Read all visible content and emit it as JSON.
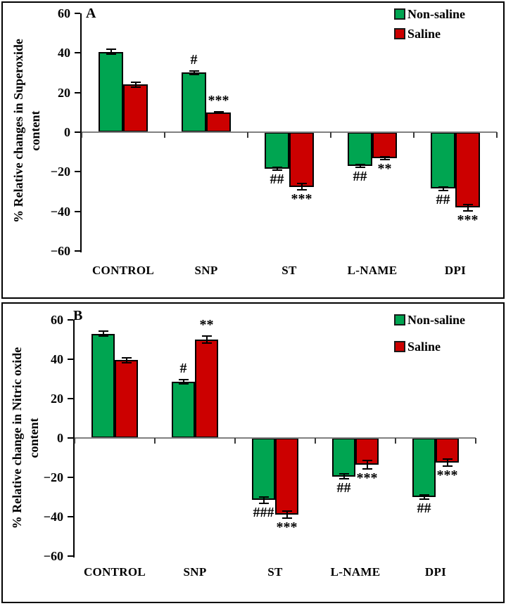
{
  "styles": {
    "non_saline_color": "#00A551",
    "saline_color": "#CC0000",
    "bar_border_color": "#000000",
    "zero_line_color": "#808080",
    "axis_color": "#000000"
  },
  "chart_data": [
    {
      "type": "bar",
      "panel_label": "A",
      "ylabel": "% Relative changes in Superoxide content",
      "ylabel_lines": [
        "% Relative changes in Superoxide",
        "content"
      ],
      "categories": [
        "CONTROL",
        "SNP",
        "ST",
        "L-NAME",
        "DPI"
      ],
      "ylim": [
        -60,
        60
      ],
      "yticks": [
        60,
        40,
        20,
        0,
        -20,
        -40,
        -60
      ],
      "grid": false,
      "legend_position": "top-right",
      "series": [
        {
          "name": "Non-saline",
          "color": "#00A551",
          "values": [
            40.5,
            30,
            -18.5,
            -17,
            -28.5
          ],
          "errors": [
            1.2,
            0.9,
            0.6,
            0.6,
            0.9
          ],
          "annotations": [
            "",
            "#",
            "##",
            "##",
            "##"
          ]
        },
        {
          "name": "Saline",
          "color": "#CC0000",
          "values": [
            24,
            10,
            -27.5,
            -13,
            -38
          ],
          "errors": [
            1.3,
            0.4,
            1.5,
            0.7,
            1.6
          ],
          "annotations": [
            "",
            "***",
            "***",
            "**",
            "***"
          ]
        }
      ]
    },
    {
      "type": "bar",
      "panel_label": "B",
      "ylabel": "% Relative change in Nitric oxide content",
      "ylabel_lines": [
        "% Relative change in Nitric oxide",
        "content"
      ],
      "categories": [
        "CONTROL",
        "SNP",
        "ST",
        "L-NAME",
        "DPI"
      ],
      "ylim": [
        -60,
        60
      ],
      "yticks": [
        60,
        40,
        20,
        0,
        -20,
        -40,
        -60
      ],
      "grid": false,
      "legend_position": "top-right",
      "series": [
        {
          "name": "Non-saline",
          "color": "#00A551",
          "values": [
            53,
            28.5,
            -31.5,
            -19.5,
            -30
          ],
          "errors": [
            1.3,
            1.0,
            1.6,
            1.2,
            1.0
          ],
          "annotations": [
            "",
            "#",
            "###",
            "##",
            "##"
          ]
        },
        {
          "name": "Saline",
          "color": "#CC0000",
          "values": [
            39.5,
            50,
            -39,
            -13.5,
            -12.5
          ],
          "errors": [
            1.3,
            1.8,
            1.7,
            2.2,
            1.8
          ],
          "annotations": [
            "",
            "**",
            "***",
            "***",
            "***"
          ]
        }
      ]
    }
  ]
}
